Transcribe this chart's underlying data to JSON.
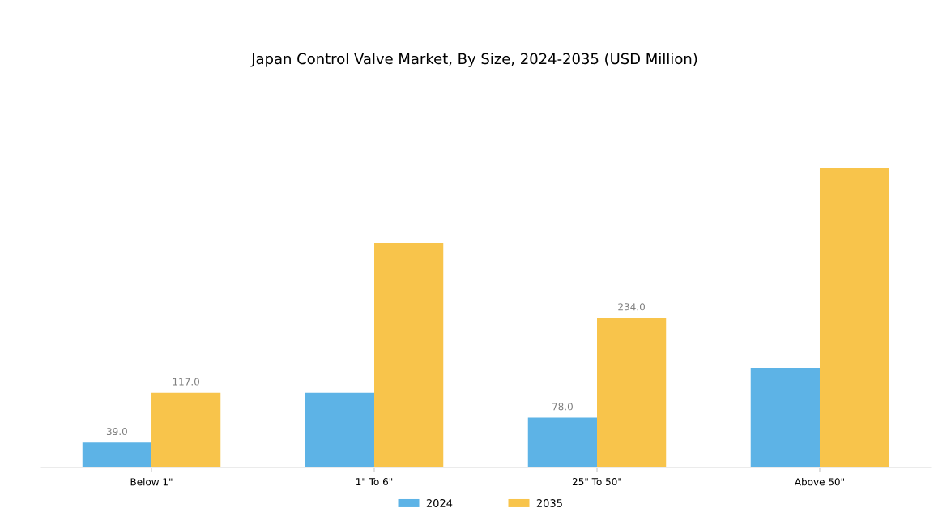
{
  "chart_data": {
    "type": "bar",
    "title": "Japan Control Valve Market, By Size, 2024-2035 (USD Million)",
    "categories": [
      "Below 1\"",
      "1\" To 6\"",
      "25\" To 50\"",
      "Above 50\""
    ],
    "series": [
      {
        "name": "2024",
        "color": "#5db3e6",
        "values": [
          39.0,
          117,
          78.0,
          156
        ],
        "value_labels": [
          "39.0",
          null,
          "78.0",
          null
        ]
      },
      {
        "name": "2035",
        "color": "#f8c44b",
        "values": [
          117.0,
          351,
          234.0,
          469
        ],
        "value_labels": [
          "117.0",
          null,
          "234.0",
          null
        ]
      }
    ],
    "legend": "bottom"
  }
}
